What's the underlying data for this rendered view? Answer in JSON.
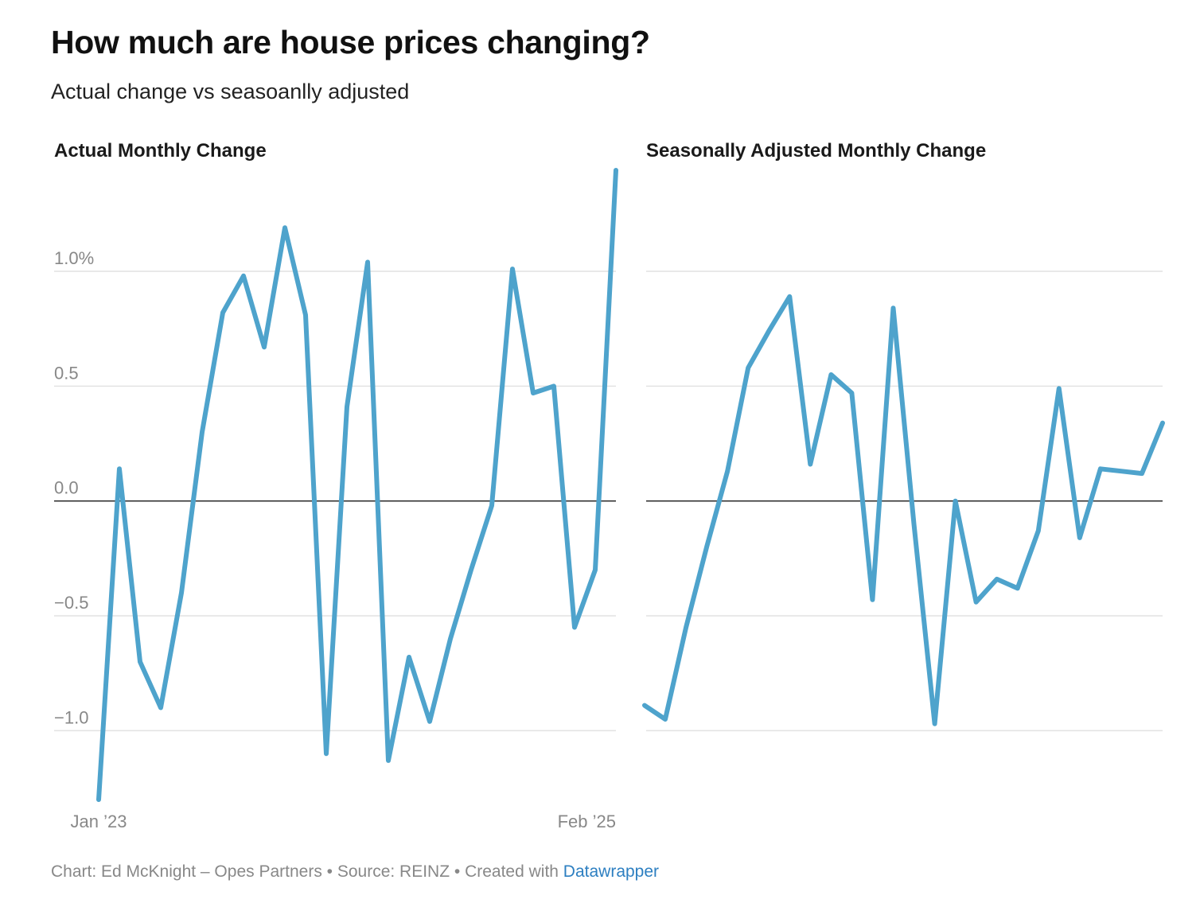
{
  "title": "How much are house prices changing?",
  "subtitle": "Actual change vs seasoanlly adjusted",
  "footer": {
    "credit": "Chart: Ed McKnight – Opes Partners • Source: REINZ • Created with ",
    "link_label": "Datawrapper"
  },
  "colors": {
    "line": "#4ea3cc",
    "grid": "#e2e2e2",
    "zero": "#333333",
    "tick": "#888888"
  },
  "chart_data": [
    {
      "type": "line",
      "title": "Actual Monthly Change",
      "x": [
        "Jan 2023",
        "Feb 2023",
        "Mar 2023",
        "Apr 2023",
        "May 2023",
        "Jun 2023",
        "Jul 2023",
        "Aug 2023",
        "Sep 2023",
        "Oct 2023",
        "Nov 2023",
        "Dec 2023",
        "Jan 2024",
        "Feb 2024",
        "Mar 2024",
        "Apr 2024",
        "May 2024",
        "Jun 2024",
        "Jul 2024",
        "Aug 2024",
        "Sep 2024",
        "Oct 2024",
        "Nov 2024",
        "Dec 2024",
        "Jan 2025",
        "Feb 2025"
      ],
      "values": [
        -1.3,
        0.14,
        -0.7,
        -0.9,
        -0.4,
        0.3,
        0.82,
        0.98,
        0.67,
        1.19,
        0.81,
        -1.1,
        0.41,
        1.04,
        -1.13,
        -0.68,
        -0.96,
        -0.6,
        -0.3,
        -0.02,
        1.01,
        0.47,
        0.5,
        -0.55,
        -0.3,
        1.44
      ],
      "x_tick_labels": [
        "Jan ’23",
        "Feb ’25"
      ],
      "y_ticks": [
        1.0,
        0.5,
        0.0,
        -0.5,
        -1.0
      ],
      "y_tick_labels": [
        "1.0%",
        "0.5",
        "0.0",
        "−0.5",
        "−1.0"
      ],
      "ylim": [
        -1.3,
        1.44
      ]
    },
    {
      "type": "line",
      "title": "Seasonally Adjusted Monthly Change",
      "x": [
        "Jan 2023",
        "Feb 2023",
        "Mar 2023",
        "Apr 2023",
        "May 2023",
        "Jun 2023",
        "Jul 2023",
        "Aug 2023",
        "Sep 2023",
        "Oct 2023",
        "Nov 2023",
        "Dec 2023",
        "Jan 2024",
        "Feb 2024",
        "Mar 2024",
        "Apr 2024",
        "May 2024",
        "Jun 2024",
        "Jul 2024",
        "Aug 2024",
        "Sep 2024",
        "Oct 2024",
        "Nov 2024",
        "Dec 2024",
        "Jan 2025",
        "Feb 2025"
      ],
      "values": [
        -0.89,
        -0.95,
        -0.55,
        -0.2,
        0.13,
        0.58,
        0.74,
        0.89,
        0.16,
        0.55,
        0.47,
        -0.43,
        0.84,
        -0.1,
        -0.97,
        0.0,
        -0.44,
        -0.34,
        -0.38,
        -0.13,
        0.49,
        -0.16,
        0.14,
        0.13,
        0.12,
        0.34
      ],
      "y_ticks": [
        1.0,
        0.5,
        0.0,
        -0.5,
        -1.0
      ],
      "ylim": [
        -1.3,
        1.44
      ]
    }
  ]
}
